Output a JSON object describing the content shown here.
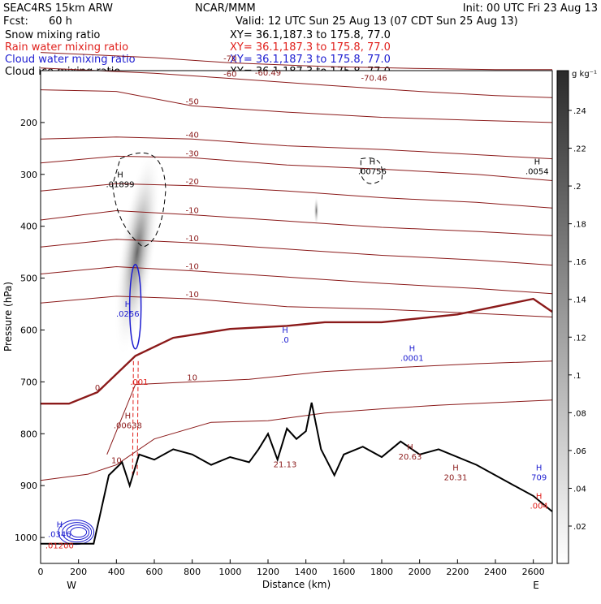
{
  "header": {
    "model": "SEAC4RS 15km ARW",
    "center": "NCAR/MMM",
    "init": "Init: 00 UTC Fri 23 Aug 13",
    "fcst_label": "Fcst:",
    "fcst_value": "60 h",
    "valid": "Valid: 12 UTC Sun 25 Aug 13 (07 CDT Sun 25 Aug 13)"
  },
  "fields": [
    {
      "name": "Snow mixing ratio",
      "xy": "XY=  36.1,187.3 to 175.8, 77.0",
      "color": "#000000"
    },
    {
      "name": "Rain water mixing ratio",
      "xy": "XY=  36.1,187.3 to 175.8, 77.0",
      "color": "#e0201c"
    },
    {
      "name": "Cloud water mixing ratio",
      "xy": "XY=  36.1,187.3 to 175.8, 77.0",
      "color": "#1c1cd0"
    },
    {
      "name": "Cloud ice mixing ratio",
      "xy": "XY=  36.1,187.3 to 175.8, 77.0",
      "color": "#000000"
    }
  ],
  "colorbar": {
    "unit": "g kg⁻¹",
    "labels": [
      ".24",
      ".22",
      ".2",
      ".18",
      ".16",
      ".14",
      ".12",
      ".1",
      ".08",
      ".06",
      ".04",
      ".02"
    ]
  },
  "chart_data": {
    "type": "contour",
    "xlabel": "Distance (km)",
    "ylabel": "Pressure (hPa)",
    "xlim": [
      0,
      2700
    ],
    "ylim": [
      1050,
      100
    ],
    "x_ticks": [
      0,
      200,
      400,
      600,
      800,
      1000,
      1200,
      1400,
      1600,
      1800,
      2000,
      2200,
      2400,
      2600
    ],
    "y_ticks": [
      200,
      300,
      400,
      500,
      600,
      700,
      800,
      900,
      1000
    ],
    "x_end_labels": {
      "left": "W",
      "right": "E"
    },
    "temperature_isotherms": [
      {
        "label": "-70",
        "points": [
          [
            0,
            65
          ],
          [
            600,
            75
          ],
          [
            1000,
            85
          ],
          [
            1500,
            92
          ],
          [
            2000,
            96
          ],
          [
            2400,
            98
          ],
          [
            2700,
            98
          ]
        ]
      },
      {
        "label": "-60",
        "points": [
          [
            0,
            95
          ],
          [
            600,
            105
          ],
          [
            1000,
            115
          ],
          [
            1500,
            128
          ],
          [
            2000,
            140
          ],
          [
            2400,
            148
          ],
          [
            2700,
            152
          ]
        ]
      },
      {
        "label": "-50",
        "points": [
          [
            0,
            137
          ],
          [
            400,
            140
          ],
          [
            800,
            168
          ],
          [
            1300,
            180
          ],
          [
            1800,
            190
          ],
          [
            2300,
            196
          ],
          [
            2700,
            200
          ]
        ]
      },
      {
        "label": "-40",
        "points": [
          [
            0,
            232
          ],
          [
            400,
            228
          ],
          [
            800,
            232
          ],
          [
            1300,
            245
          ],
          [
            1800,
            252
          ],
          [
            2300,
            262
          ],
          [
            2700,
            270
          ]
        ]
      },
      {
        "label": "-30",
        "points": [
          [
            0,
            278
          ],
          [
            400,
            265
          ],
          [
            800,
            268
          ],
          [
            1300,
            282
          ],
          [
            1800,
            290
          ],
          [
            2300,
            300
          ],
          [
            2700,
            312
          ]
        ]
      },
      {
        "label": "-20",
        "points": [
          [
            0,
            332
          ],
          [
            400,
            318
          ],
          [
            800,
            322
          ],
          [
            1300,
            332
          ],
          [
            1800,
            345
          ],
          [
            2300,
            354
          ],
          [
            2700,
            365
          ]
        ]
      },
      {
        "label": "-10",
        "points": [
          [
            0,
            388
          ],
          [
            400,
            370
          ],
          [
            800,
            378
          ],
          [
            1300,
            390
          ],
          [
            1800,
            402
          ],
          [
            2300,
            410
          ],
          [
            2700,
            418
          ]
        ]
      },
      {
        "label": "-10",
        "points": [
          [
            0,
            440
          ],
          [
            400,
            425
          ],
          [
            800,
            432
          ],
          [
            1300,
            444
          ],
          [
            1800,
            456
          ],
          [
            2300,
            465
          ],
          [
            2700,
            475
          ]
        ]
      },
      {
        "label": "-10",
        "points": [
          [
            0,
            492
          ],
          [
            400,
            478
          ],
          [
            800,
            486
          ],
          [
            1300,
            498
          ],
          [
            1800,
            510
          ],
          [
            2300,
            520
          ],
          [
            2700,
            530
          ]
        ]
      },
      {
        "label": "-10",
        "points": [
          [
            0,
            548
          ],
          [
            400,
            535
          ],
          [
            800,
            540
          ],
          [
            1300,
            555
          ],
          [
            1800,
            560
          ],
          [
            2300,
            568
          ],
          [
            2700,
            575
          ]
        ]
      },
      {
        "label": "0",
        "points": [
          [
            0,
            742
          ],
          [
            150,
            742
          ],
          [
            300,
            720
          ],
          [
            500,
            650
          ],
          [
            700,
            615
          ],
          [
            1000,
            598
          ],
          [
            1300,
            592
          ],
          [
            1500,
            585
          ],
          [
            1800,
            585
          ],
          [
            2200,
            570
          ],
          [
            2600,
            540
          ],
          [
            2700,
            565
          ]
        ]
      },
      {
        "label": "10",
        "points": [
          [
            0,
            890
          ],
          [
            250,
            878
          ],
          [
            400,
            860
          ],
          [
            600,
            810
          ],
          [
            900,
            778
          ],
          [
            1200,
            775
          ],
          [
            1500,
            760
          ],
          [
            1800,
            752
          ],
          [
            2100,
            745
          ],
          [
            2400,
            740
          ],
          [
            2700,
            735
          ]
        ]
      },
      {
        "label": "10",
        "points": [
          [
            350,
            840
          ],
          [
            500,
            705
          ],
          [
            800,
            700
          ],
          [
            1100,
            695
          ],
          [
            1500,
            680
          ],
          [
            1900,
            672
          ],
          [
            2300,
            665
          ],
          [
            2700,
            660
          ]
        ]
      }
    ],
    "terrain": {
      "label": "surface",
      "points": [
        [
          0,
          1012
        ],
        [
          280,
          1012
        ],
        [
          360,
          880
        ],
        [
          430,
          855
        ],
        [
          470,
          900
        ],
        [
          520,
          840
        ],
        [
          600,
          850
        ],
        [
          700,
          830
        ],
        [
          800,
          840
        ],
        [
          900,
          860
        ],
        [
          1000,
          845
        ],
        [
          1100,
          855
        ],
        [
          1150,
          830
        ],
        [
          1200,
          800
        ],
        [
          1250,
          850
        ],
        [
          1300,
          790
        ],
        [
          1350,
          810
        ],
        [
          1400,
          795
        ],
        [
          1430,
          740
        ],
        [
          1480,
          830
        ],
        [
          1550,
          880
        ],
        [
          1600,
          840
        ],
        [
          1700,
          825
        ],
        [
          1800,
          845
        ],
        [
          1900,
          815
        ],
        [
          2000,
          840
        ],
        [
          2100,
          830
        ],
        [
          2300,
          860
        ],
        [
          2500,
          900
        ],
        [
          2600,
          920
        ],
        [
          2700,
          950
        ]
      ]
    },
    "cloud_features": [
      {
        "field": "Cloud ice mixing ratio",
        "kind": "shaded plume",
        "x": [
          400,
          700
        ],
        "p": [
          250,
          700
        ]
      },
      {
        "field": "Cloud water mixing ratio",
        "kind": "contour",
        "x": [
          470,
          520
        ],
        "p": [
          470,
          640
        ]
      },
      {
        "field": "Rain water mixing ratio",
        "kind": "contour",
        "x": [
          480,
          520
        ],
        "p": [
          650,
          870
        ]
      },
      {
        "field": "Snow mixing ratio",
        "kind": "contour",
        "x": [
          380,
          650
        ],
        "p": [
          250,
          420
        ]
      }
    ],
    "annotations": [
      {
        "text": "H",
        "sub": ".01899",
        "x": 420,
        "p": 315,
        "color": "#000000"
      },
      {
        "text": "H",
        "sub": ".00756",
        "x": 1750,
        "p": 290,
        "color": "#000000"
      },
      {
        "text": "H",
        "sub": ".0054",
        "x": 2620,
        "p": 290,
        "color": "#000000"
      },
      {
        "text": "H",
        "sub": ".0256",
        "x": 460,
        "p": 565,
        "color": "#1c1cd0"
      },
      {
        "text": "H",
        "sub": ".0",
        "x": 1290,
        "p": 615,
        "color": "#1c1cd0"
      },
      {
        "text": "H",
        "sub": ".0001",
        "x": 1960,
        "p": 650,
        "color": "#1c1cd0"
      },
      {
        "text": "H",
        "sub": ".00638",
        "x": 460,
        "p": 780,
        "color": "#8b1a1a"
      },
      {
        "text": ".001",
        "sub": "",
        "x": 520,
        "p": 715,
        "color": "#e0201c"
      },
      {
        "text": "",
        "sub": "21.13",
        "x": 1290,
        "p": 855,
        "color": "#8b1a1a"
      },
      {
        "text": "H",
        "sub": "20.63",
        "x": 1950,
        "p": 840,
        "color": "#8b1a1a"
      },
      {
        "text": "H",
        "sub": "20.31",
        "x": 2190,
        "p": 880,
        "color": "#8b1a1a"
      },
      {
        "text": "H",
        "sub": ".0346",
        "x": 100,
        "p": 990,
        "color": "#1c1cd0"
      },
      {
        "text": "",
        "sub": ".01200",
        "x": 100,
        "p": 1012,
        "color": "#e0201c"
      },
      {
        "text": "H",
        "sub": "709",
        "x": 2630,
        "p": 880,
        "color": "#1c1cd0"
      },
      {
        "text": "H",
        "sub": ".004",
        "x": 2630,
        "p": 935,
        "color": "#e0201c"
      },
      {
        "text": "",
        "sub": "-70.46",
        "x": 1760,
        "p": 110,
        "color": "#8b1a1a"
      },
      {
        "text": "",
        "sub": "-60.49",
        "x": 1200,
        "p": 100,
        "color": "#8b1a1a"
      }
    ]
  }
}
